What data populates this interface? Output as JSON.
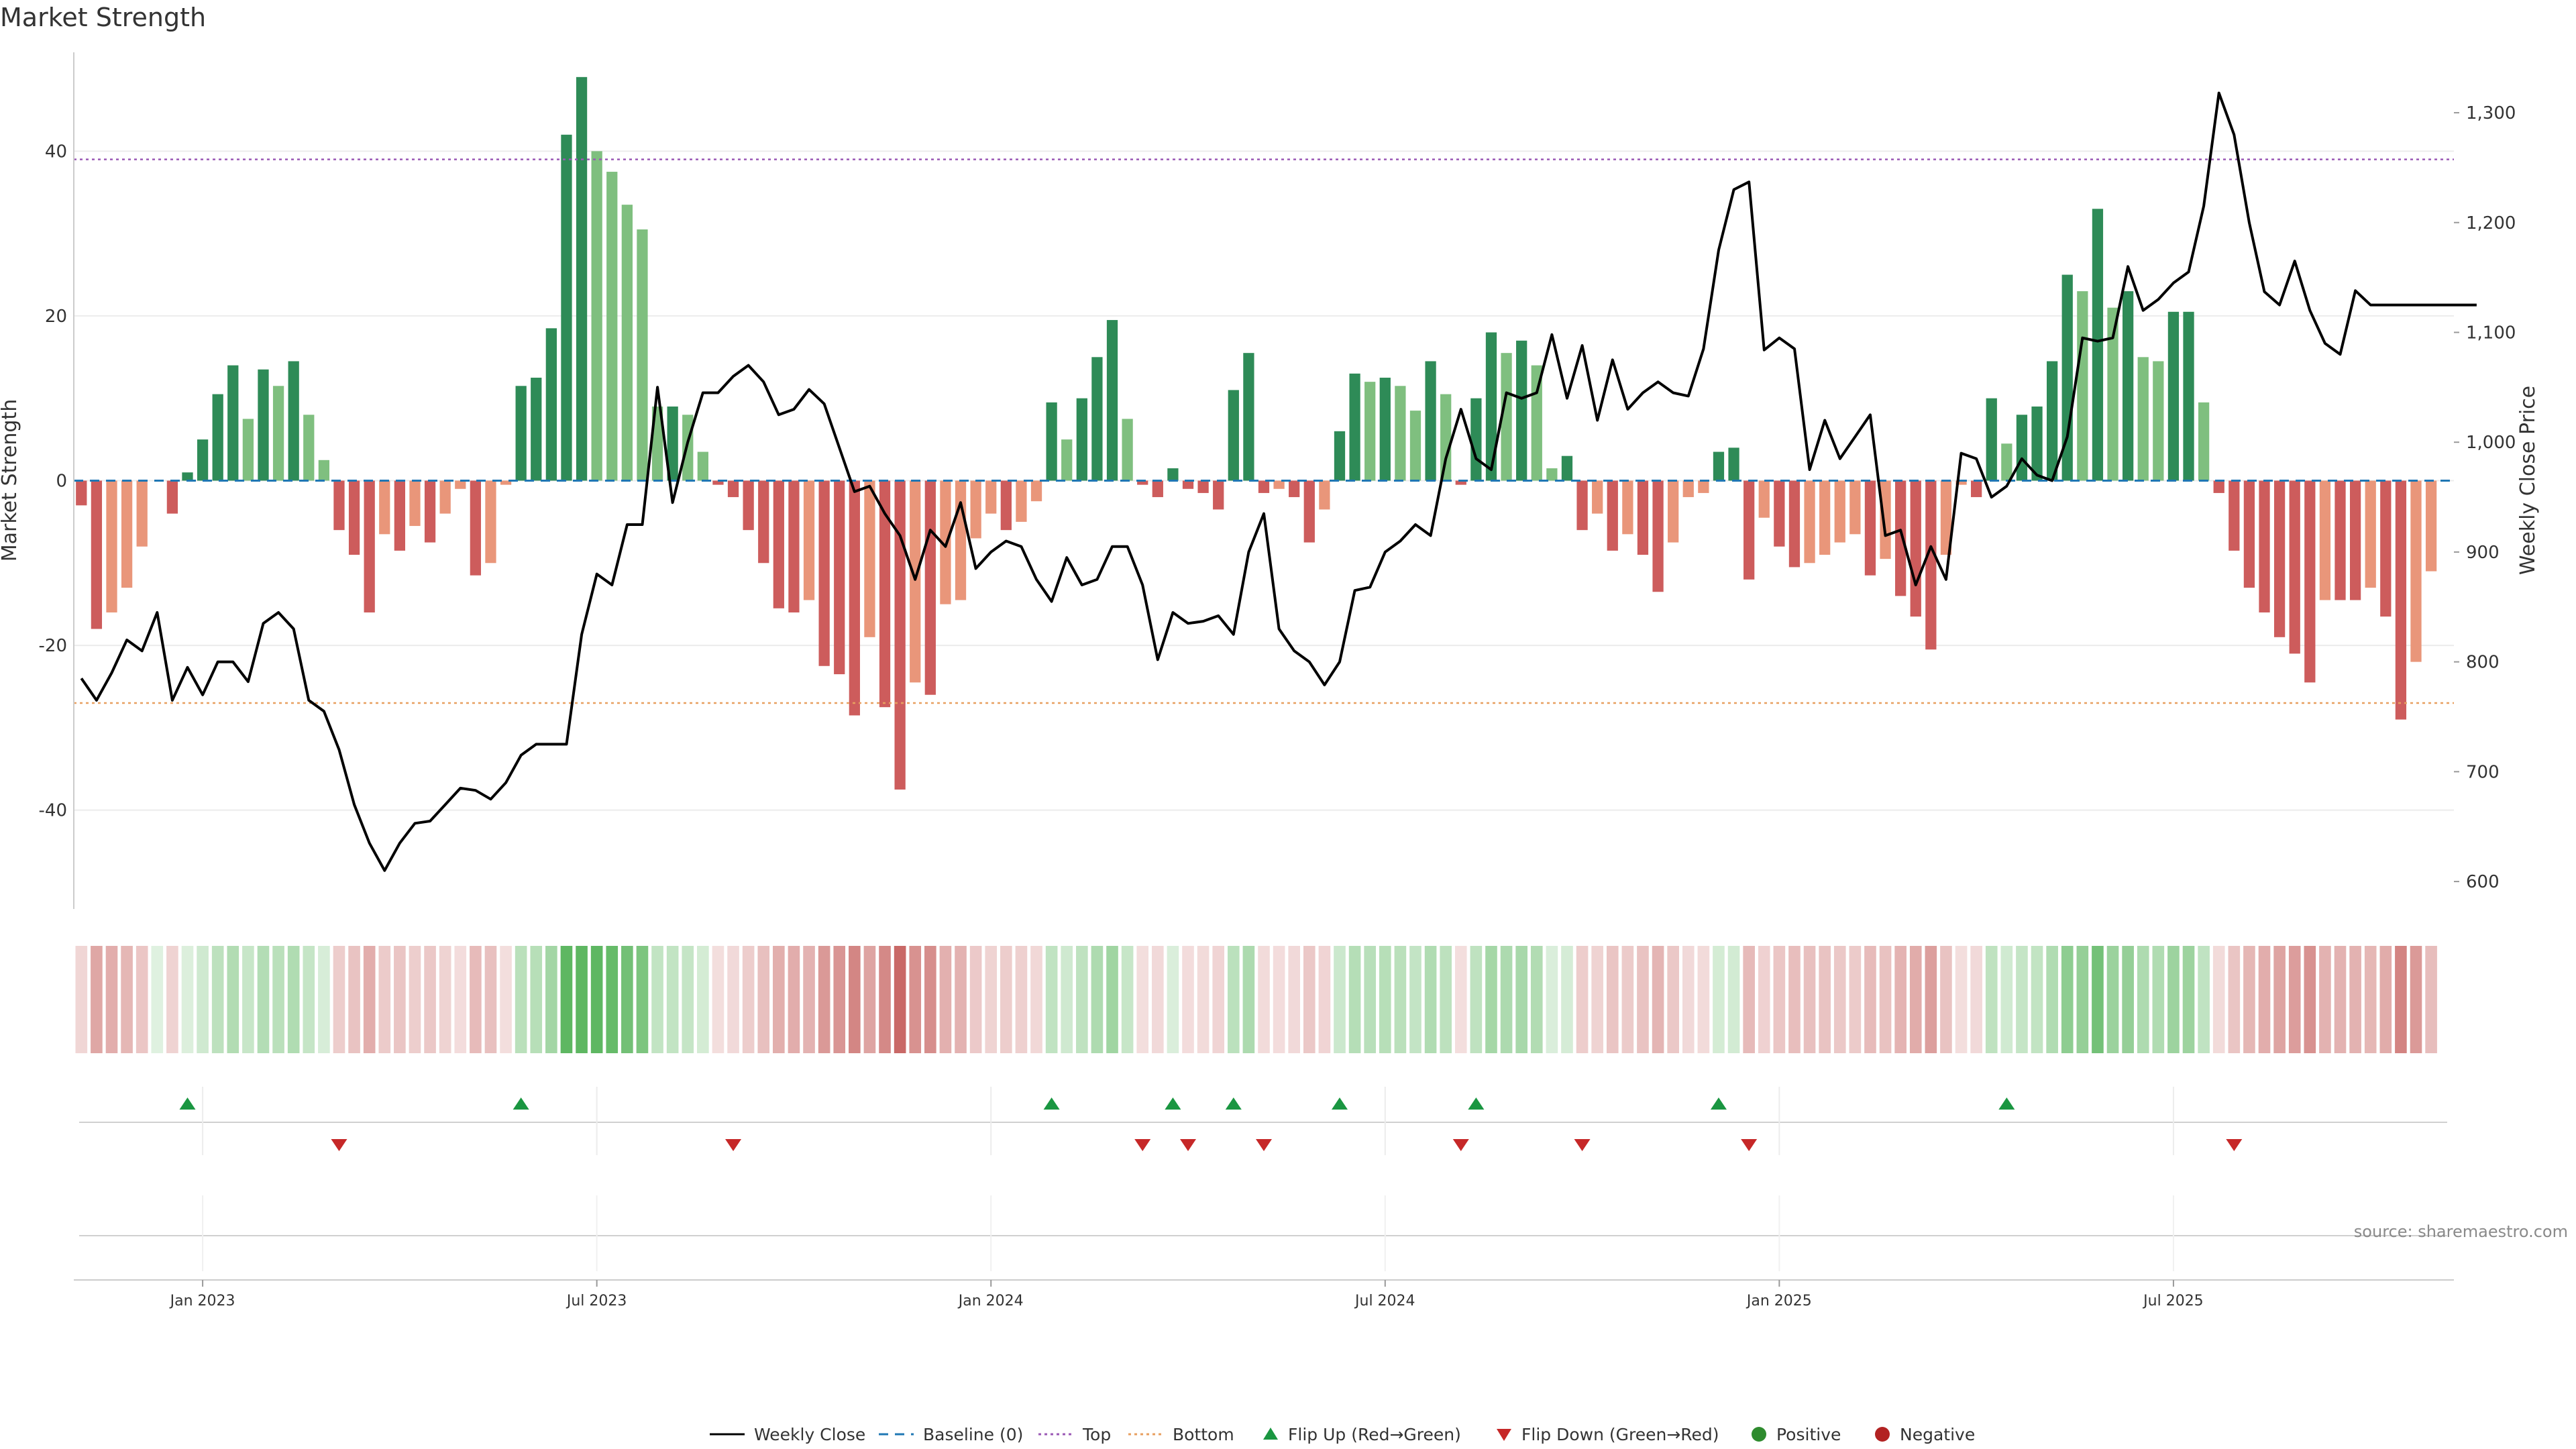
{
  "colors": {
    "pos_strong": "#2e8b57",
    "pos_weak": "#7fbf7f",
    "neg_strong": "#cd5c5c",
    "neg_weak": "#e9967a",
    "line": "#000000",
    "top": "#9b59b6",
    "bottom": "#e8a060",
    "baseline": "#1f77b4",
    "flip_up": "#1a9641",
    "flip_down": "#c62828",
    "dot_pos": "#2e8b2e",
    "dot_neg": "#b22222",
    "grid": "#ececec",
    "axis": "#cccccc"
  },
  "chart_data": {
    "type": "bar+line",
    "title": "Market Strength",
    "y_left_label": "Market Strength",
    "y_right_label": "Weekly Close Price",
    "y_left_range": [
      -52,
      52
    ],
    "y_right_range": [
      575,
      1355
    ],
    "y_left_ticks": [
      -40,
      -20,
      0,
      20,
      40
    ],
    "y_right_ticks": [
      600,
      700,
      800,
      900,
      1000,
      1100,
      1200,
      1300
    ],
    "y_right_tick_labels": [
      "600",
      "700",
      "800",
      "900",
      "1,000",
      "1,100",
      "1,200",
      "1,300"
    ],
    "x_range": [
      0,
      157
    ],
    "date_ticks": [
      {
        "x": 8,
        "label": "Jan 2023"
      },
      {
        "x": 34,
        "label": "Jul 2023"
      },
      {
        "x": 60,
        "label": "Jan 2024"
      },
      {
        "x": 86,
        "label": "Jul 2024"
      },
      {
        "x": 112,
        "label": "Jan 2025"
      },
      {
        "x": 138,
        "label": "Jul 2025"
      }
    ],
    "top_line": 39,
    "bottom_line": -27,
    "strength": [
      -3,
      -18,
      -16,
      -13,
      -8,
      0,
      -4,
      1,
      5,
      10.5,
      14,
      7.5,
      13.5,
      11.5,
      14.5,
      8,
      2.5,
      -6,
      -9,
      -16,
      -6.5,
      -8.5,
      -5.5,
      -7.5,
      -4,
      -1,
      -11.5,
      -10,
      -0.5,
      11.5,
      12.5,
      18.5,
      42,
      49,
      40,
      37.5,
      33.5,
      30.5,
      9,
      9,
      8,
      3.5,
      -0.5,
      -2,
      -6,
      -10,
      -15.5,
      -16,
      -14.5,
      -22.5,
      -23.5,
      -28.5,
      -19,
      -27.5,
      -37.5,
      -24.5,
      -26,
      -15,
      -14.5,
      -7,
      -4,
      -6,
      -5,
      -2.5,
      9.5,
      5,
      10,
      15,
      19.5,
      7.5,
      -0.5,
      -2,
      1.5,
      -1,
      -1.5,
      -3.5,
      11,
      15.5,
      -1.5,
      -1,
      -2,
      -7.5,
      -3.5,
      6,
      13,
      12,
      12.5,
      11.5,
      8.5,
      14.5,
      10.5,
      -0.5,
      10,
      18,
      15.5,
      17,
      14,
      1.5,
      3,
      -6,
      -4,
      -8.5,
      -6.5,
      -9,
      -13.5,
      -7.5,
      -2,
      -1.5,
      3.5,
      4,
      -12,
      -4.5,
      -8,
      -10.5,
      -10,
      -9,
      -7.5,
      -6.5,
      -11.5,
      -9.5,
      -14,
      -16.5,
      -20.5,
      -9,
      -0.5,
      -2,
      10,
      4.5,
      8,
      9,
      14.5,
      25,
      23,
      33,
      21,
      23,
      15,
      14.5,
      20.5,
      20.5,
      9.5,
      -1.5,
      -8.5,
      -13,
      -16,
      -19,
      -21,
      -24.5,
      -14.5,
      -14.5,
      -14.5,
      -13,
      -16.5,
      -29,
      -22,
      -11
    ],
    "close": [
      785,
      765,
      790,
      820,
      810,
      845,
      765,
      795,
      770,
      800,
      800,
      782,
      835,
      845,
      830,
      765,
      755,
      720,
      670,
      635,
      610,
      635,
      653,
      655,
      670,
      685,
      683,
      675,
      690,
      715,
      725,
      725,
      725,
      825,
      880,
      870,
      925,
      925,
      1050,
      945,
      1000,
      1045,
      1045,
      1060,
      1070,
      1055,
      1025,
      1030,
      1048,
      1035,
      995,
      955,
      960,
      935,
      915,
      875,
      920,
      905,
      945,
      885,
      900,
      910,
      905,
      875,
      855,
      895,
      870,
      875,
      905,
      905,
      870,
      802,
      845,
      835,
      837,
      842,
      825,
      900,
      935,
      830,
      810,
      800,
      779,
      800,
      865,
      868,
      900,
      910,
      925,
      915,
      985,
      1030,
      985,
      975,
      1045,
      1040,
      1045,
      1098,
      1040,
      1088,
      1020,
      1075,
      1030,
      1045,
      1055,
      1045,
      1042,
      1085,
      1175,
      1230,
      1237,
      1084,
      1095,
      1085,
      975,
      1020,
      985,
      1005,
      1025,
      915,
      920,
      870,
      905,
      875,
      990,
      985,
      950,
      960,
      985,
      970,
      965,
      1005,
      1095,
      1092,
      1095,
      1160,
      1120,
      1130,
      1145,
      1155,
      1215,
      1318,
      1280,
      1200,
      1137,
      1125,
      1165,
      1120,
      1090,
      1080,
      1138,
      1125,
      1125,
      1125,
      1125,
      1125,
      1125,
      1125,
      1125
    ],
    "flip_up": [
      7,
      29,
      64,
      72,
      76,
      83,
      92,
      108,
      127
    ],
    "flip_down": [
      17,
      43,
      70,
      73,
      78,
      91,
      99,
      110,
      142
    ],
    "legend": [
      "Weekly Close",
      "Baseline (0)",
      "Top",
      "Bottom",
      "Flip Up (Red→Green)",
      "Flip Down (Green→Red)",
      "Positive",
      "Negative"
    ]
  },
  "source": "source: sharemaestro.com"
}
